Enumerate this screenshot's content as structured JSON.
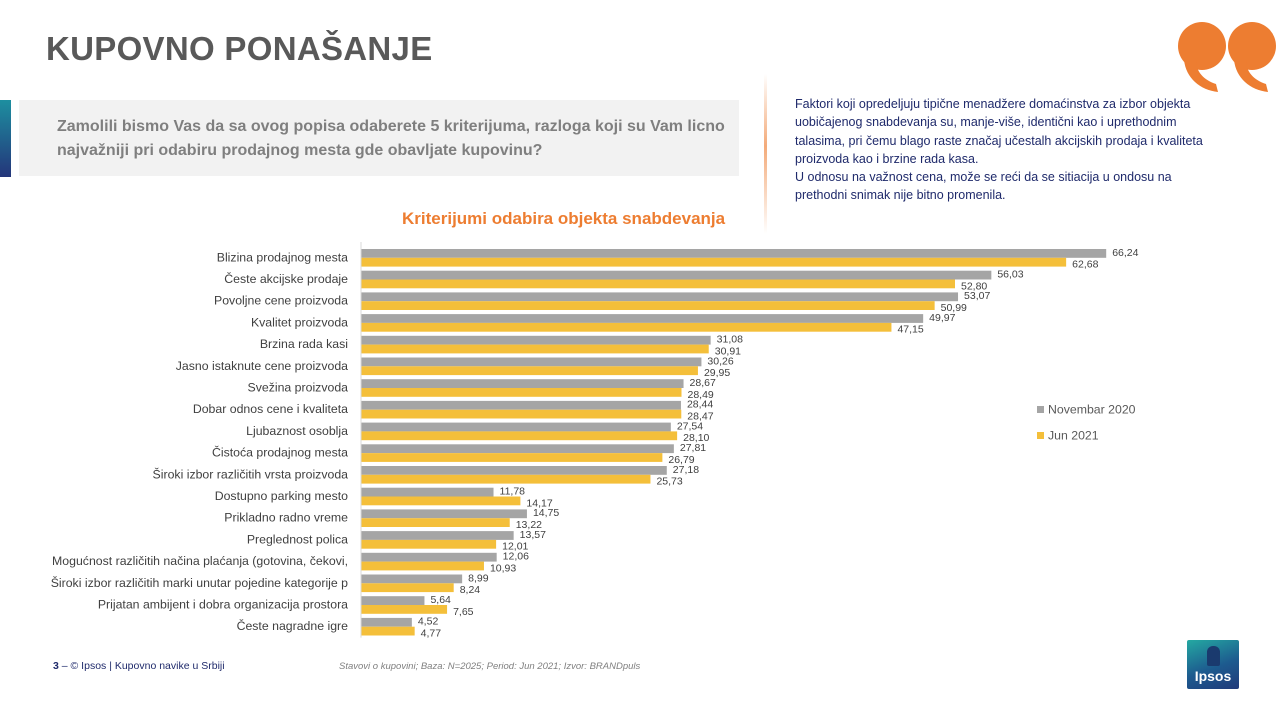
{
  "slide": {
    "title": "KUPOVNO PONAŠANJE",
    "question": "Zamolili bismo Vas da sa ovog popisa odaberete 5 kriterijuma, razloga koji su Vam licno najvažniji pri odabiru prodajnog mesta gde obavljate kupovinu?",
    "summary": [
      "Faktori koji opredeljuju tipične menadžere domaćinstva za izbor objekta uobičajenog snabdevanja su, manje-više, identični kao i uprethodnim talasima, pri čemu blago raste značaj učestalh akcijskih prodaja i kvaliteta proizvoda kao i brzine rada kasa.",
      "U odnosu na važnost cena, može se reći da se sitiacija u ondosu na prethodni snimak nije bitno promenila."
    ],
    "footer": {
      "page_number": "3",
      "separator": " – ",
      "copyright": "© Ipsos | Kupovno navike u Srbiji",
      "source": "Stavovi o kupovini; Baza: N=2025; Period: Jun 2021; Izvor: BRANDpuls"
    },
    "logo_text": "Ipsos",
    "colors": {
      "accent": "#ed7d31",
      "navy": "#1f2a6b",
      "series_nov": "#a5a5a5",
      "series_jun": "#f4bf3a"
    },
    "icons": {
      "quote": "quote-icon",
      "logo": "ipsos-logo"
    }
  },
  "chart_data": {
    "type": "bar",
    "orientation": "horizontal",
    "title": "Kriterijumi odabira objekta snabdevanja",
    "categories": [
      "Blizina prodajnog mesta",
      "Česte akcijske prodaje",
      "Povoljne cene proizvoda",
      "Kvalitet proizvoda",
      "Brzina rada kasi",
      "Jasno istaknute cene proizvoda",
      "Svežina proizvoda",
      "Dobar odnos cene i kvaliteta",
      "Ljubaznost osoblja",
      "Čistoća prodajnog mesta",
      "Široki izbor različitih vrsta proizvoda",
      "Dostupno parking mesto",
      "Prikladno radno vreme",
      "Preglednost polica",
      "Mogućnost različitih načina plaćanja (gotovina, čekovi,",
      "Široki izbor različitih marki unutar pojedine kategorije p",
      "Prijatan ambijent i dobra organizacija prostora",
      "Česte nagradne igre"
    ],
    "series": [
      {
        "name": "Novembar 2020",
        "color": "#a5a5a5",
        "values": [
          66.24,
          56.03,
          53.07,
          49.97,
          31.08,
          30.26,
          28.67,
          28.44,
          27.54,
          27.81,
          27.18,
          11.78,
          14.75,
          13.57,
          12.06,
          8.99,
          5.64,
          4.52
        ],
        "labels": [
          "66,24",
          "56,03",
          "53,07",
          "49,97",
          "31,08",
          "30,26",
          "28,67",
          "28,44",
          "27,54",
          "27,81",
          "27,18",
          "11,78",
          "14,75",
          "13,57",
          "12,06",
          "8,99",
          "5,64",
          "4,52"
        ]
      },
      {
        "name": "Jun 2021",
        "color": "#f4bf3a",
        "values": [
          62.68,
          52.8,
          50.99,
          47.15,
          30.91,
          29.95,
          28.49,
          28.47,
          28.1,
          26.79,
          25.73,
          14.17,
          13.22,
          12.01,
          10.93,
          8.24,
          7.65,
          4.77
        ],
        "labels": [
          "62,68",
          "52,80",
          "50,99",
          "47,15",
          "30,91",
          "29,95",
          "28,49",
          "28,47",
          "28,10",
          "26,79",
          "25,73",
          "14,17",
          "13,22",
          "12,01",
          "10,93",
          "8,24",
          "7,65",
          "4,77"
        ]
      }
    ],
    "xlim": [
      0,
      70
    ],
    "legend": "right",
    "grid": false
  }
}
